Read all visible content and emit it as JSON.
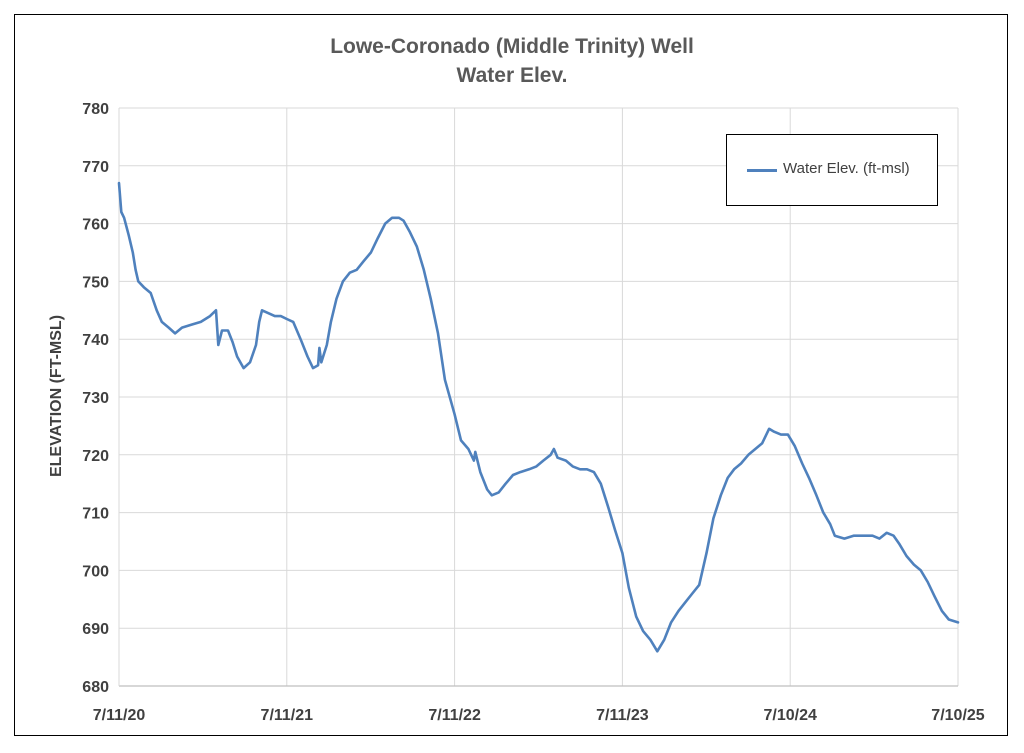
{
  "chart_data": {
    "type": "line",
    "title": "Lowe-Coronado (Middle Trinity) Well",
    "subtitle": "Water Elev.",
    "ylabel": "ELEVATION (FT-MSL)",
    "xlabel": "",
    "ylim": [
      680,
      780
    ],
    "yticks": [
      680,
      690,
      700,
      710,
      720,
      730,
      740,
      750,
      760,
      770,
      780
    ],
    "xlim": [
      "2020-07-11",
      "2025-07-10"
    ],
    "xticks": [
      {
        "date": "2020-07-11",
        "label": "7/11/20"
      },
      {
        "date": "2021-07-11",
        "label": "7/11/21"
      },
      {
        "date": "2022-07-11",
        "label": "7/11/22"
      },
      {
        "date": "2023-07-11",
        "label": "7/11/23"
      },
      {
        "date": "2024-07-10",
        "label": "7/10/24"
      },
      {
        "date": "2025-07-10",
        "label": "7/10/25"
      }
    ],
    "grid": true,
    "legend_position": "top-right",
    "series": [
      {
        "name": "Water Elev. (ft-msl)",
        "color": "#4f81bd",
        "points": [
          [
            "2020-07-11",
            767
          ],
          [
            "2020-07-16",
            762
          ],
          [
            "2020-07-22",
            761
          ],
          [
            "2020-08-01",
            758
          ],
          [
            "2020-08-10",
            755
          ],
          [
            "2020-08-16",
            752
          ],
          [
            "2020-08-22",
            750
          ],
          [
            "2020-09-03",
            749
          ],
          [
            "2020-09-18",
            748
          ],
          [
            "2020-10-01",
            745
          ],
          [
            "2020-10-12",
            743
          ],
          [
            "2020-10-27",
            742
          ],
          [
            "2020-11-10",
            741
          ],
          [
            "2020-11-25",
            742
          ],
          [
            "2020-12-15",
            742.5
          ],
          [
            "2021-01-05",
            743
          ],
          [
            "2021-01-25",
            744
          ],
          [
            "2021-02-07",
            745
          ],
          [
            "2021-02-12",
            739
          ],
          [
            "2021-02-20",
            741.5
          ],
          [
            "2021-03-05",
            741.5
          ],
          [
            "2021-03-15",
            739.5
          ],
          [
            "2021-03-25",
            737
          ],
          [
            "2021-04-08",
            735
          ],
          [
            "2021-04-22",
            736
          ],
          [
            "2021-05-05",
            739
          ],
          [
            "2021-05-12",
            743
          ],
          [
            "2021-05-18",
            745
          ],
          [
            "2021-06-01",
            744.5
          ],
          [
            "2021-06-15",
            744
          ],
          [
            "2021-06-28",
            744
          ],
          [
            "2021-07-11",
            743.5
          ],
          [
            "2021-07-25",
            743
          ],
          [
            "2021-08-10",
            740
          ],
          [
            "2021-08-25",
            737
          ],
          [
            "2021-09-06",
            735
          ],
          [
            "2021-09-17",
            735.5
          ],
          [
            "2021-09-20",
            738.5
          ],
          [
            "2021-09-24",
            736
          ],
          [
            "2021-10-06",
            739
          ],
          [
            "2021-10-15",
            743
          ],
          [
            "2021-10-27",
            747
          ],
          [
            "2021-11-10",
            750
          ],
          [
            "2021-11-25",
            751.5
          ],
          [
            "2021-12-10",
            752
          ],
          [
            "2021-12-25",
            753.5
          ],
          [
            "2022-01-10",
            755
          ],
          [
            "2022-01-25",
            757.5
          ],
          [
            "2022-02-10",
            760
          ],
          [
            "2022-02-25",
            761
          ],
          [
            "2022-03-12",
            761
          ],
          [
            "2022-03-22",
            760.5
          ],
          [
            "2022-04-05",
            758.5
          ],
          [
            "2022-04-20",
            756
          ],
          [
            "2022-05-05",
            752
          ],
          [
            "2022-05-20",
            747
          ],
          [
            "2022-06-05",
            741
          ],
          [
            "2022-06-20",
            733
          ],
          [
            "2022-07-11",
            727
          ],
          [
            "2022-07-25",
            722.5
          ],
          [
            "2022-08-10",
            721
          ],
          [
            "2022-08-22",
            719
          ],
          [
            "2022-08-25",
            720.5
          ],
          [
            "2022-09-05",
            717
          ],
          [
            "2022-09-20",
            714
          ],
          [
            "2022-09-30",
            713
          ],
          [
            "2022-10-15",
            713.5
          ],
          [
            "2022-10-30",
            715
          ],
          [
            "2022-11-15",
            716.5
          ],
          [
            "2022-12-01",
            717
          ],
          [
            "2022-12-20",
            717.5
          ],
          [
            "2023-01-05",
            718
          ],
          [
            "2023-01-20",
            719
          ],
          [
            "2023-02-05",
            720
          ],
          [
            "2023-02-12",
            721
          ],
          [
            "2023-02-20",
            719.5
          ],
          [
            "2023-03-10",
            719
          ],
          [
            "2023-03-25",
            718
          ],
          [
            "2023-04-10",
            717.5
          ],
          [
            "2023-04-25",
            717.5
          ],
          [
            "2023-05-10",
            717
          ],
          [
            "2023-05-25",
            715
          ],
          [
            "2023-06-10",
            711
          ],
          [
            "2023-06-25",
            707
          ],
          [
            "2023-07-11",
            703
          ],
          [
            "2023-07-25",
            697
          ],
          [
            "2023-08-10",
            692
          ],
          [
            "2023-08-25",
            689.5
          ],
          [
            "2023-09-10",
            688
          ],
          [
            "2023-09-25",
            686
          ],
          [
            "2023-10-10",
            688
          ],
          [
            "2023-10-25",
            691
          ],
          [
            "2023-11-10",
            693
          ],
          [
            "2023-11-25",
            694.5
          ],
          [
            "2023-12-10",
            696
          ],
          [
            "2023-12-25",
            697.5
          ],
          [
            "2024-01-10",
            703
          ],
          [
            "2024-01-25",
            709
          ],
          [
            "2024-02-10",
            713
          ],
          [
            "2024-02-25",
            716
          ],
          [
            "2024-03-10",
            717.5
          ],
          [
            "2024-03-25",
            718.5
          ],
          [
            "2024-04-10",
            720
          ],
          [
            "2024-04-25",
            721
          ],
          [
            "2024-05-10",
            722
          ],
          [
            "2024-05-25",
            724.5
          ],
          [
            "2024-06-05",
            724
          ],
          [
            "2024-06-20",
            723.5
          ],
          [
            "2024-07-05",
            723.5
          ],
          [
            "2024-07-20",
            721.5
          ],
          [
            "2024-08-05",
            718.5
          ],
          [
            "2024-08-20",
            716
          ],
          [
            "2024-09-05",
            713
          ],
          [
            "2024-09-20",
            710
          ],
          [
            "2024-10-05",
            708
          ],
          [
            "2024-10-15",
            706
          ],
          [
            "2024-11-05",
            705.5
          ],
          [
            "2024-11-25",
            706
          ],
          [
            "2024-12-15",
            706
          ],
          [
            "2025-01-05",
            706
          ],
          [
            "2025-01-20",
            705.5
          ],
          [
            "2025-02-05",
            706.5
          ],
          [
            "2025-02-20",
            706
          ],
          [
            "2025-03-05",
            704.5
          ],
          [
            "2025-03-20",
            702.5
          ],
          [
            "2025-04-05",
            701
          ],
          [
            "2025-04-20",
            700
          ],
          [
            "2025-05-05",
            698
          ],
          [
            "2025-05-20",
            695.5
          ],
          [
            "2025-06-05",
            693
          ],
          [
            "2025-06-20",
            691.5
          ],
          [
            "2025-07-10",
            691
          ]
        ]
      }
    ]
  }
}
